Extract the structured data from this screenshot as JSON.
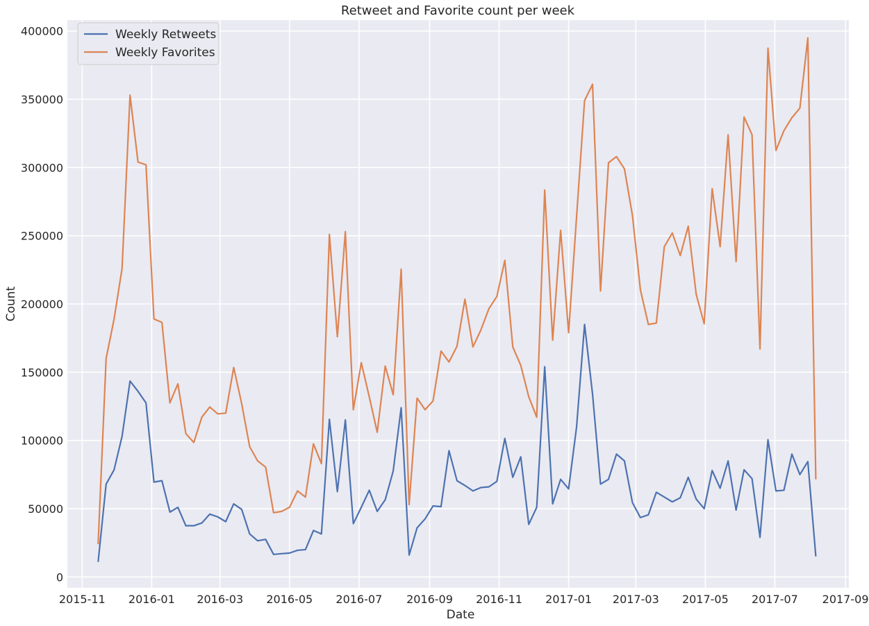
{
  "chart_data": {
    "type": "line",
    "title": "Retweet and Favorite count per week",
    "xlabel": "Date",
    "ylabel": "Count",
    "xlim": [
      "2015-10-19",
      "2017-09-04"
    ],
    "ylim": [
      -8000,
      408000
    ],
    "x_ticks": [
      "2015-11",
      "2016-01",
      "2016-03",
      "2016-05",
      "2016-07",
      "2016-09",
      "2016-11",
      "2017-01",
      "2017-03",
      "2017-05",
      "2017-07",
      "2017-09"
    ],
    "y_ticks": [
      "0",
      "50000",
      "100000",
      "150000",
      "200000",
      "250000",
      "300000",
      "350000",
      "400000"
    ],
    "grid": true,
    "legend_position": "top-left",
    "background": "#eaeaf2",
    "x": [
      "2015-11-15",
      "2015-11-22",
      "2015-11-29",
      "2015-12-06",
      "2015-12-13",
      "2015-12-20",
      "2015-12-27",
      "2016-01-03",
      "2016-01-10",
      "2016-01-17",
      "2016-01-24",
      "2016-01-31",
      "2016-02-07",
      "2016-02-14",
      "2016-02-21",
      "2016-02-28",
      "2016-03-06",
      "2016-03-13",
      "2016-03-20",
      "2016-03-27",
      "2016-04-03",
      "2016-04-10",
      "2016-04-17",
      "2016-04-24",
      "2016-05-01",
      "2016-05-08",
      "2016-05-15",
      "2016-05-22",
      "2016-05-29",
      "2016-06-05",
      "2016-06-12",
      "2016-06-19",
      "2016-06-26",
      "2016-07-03",
      "2016-07-10",
      "2016-07-17",
      "2016-07-24",
      "2016-07-31",
      "2016-08-07",
      "2016-08-14",
      "2016-08-21",
      "2016-08-28",
      "2016-09-04",
      "2016-09-11",
      "2016-09-18",
      "2016-09-25",
      "2016-10-02",
      "2016-10-09",
      "2016-10-16",
      "2016-10-23",
      "2016-10-30",
      "2016-11-06",
      "2016-11-13",
      "2016-11-20",
      "2016-11-27",
      "2016-12-04",
      "2016-12-11",
      "2016-12-18",
      "2016-12-25",
      "2017-01-01",
      "2017-01-08",
      "2017-01-15",
      "2017-01-22",
      "2017-01-29",
      "2017-02-05",
      "2017-02-12",
      "2017-02-19",
      "2017-02-26",
      "2017-03-05",
      "2017-03-12",
      "2017-03-19",
      "2017-03-26",
      "2017-04-02",
      "2017-04-09",
      "2017-04-16",
      "2017-04-23",
      "2017-04-30",
      "2017-05-07",
      "2017-05-14",
      "2017-05-21",
      "2017-05-28",
      "2017-06-04",
      "2017-06-11",
      "2017-06-18",
      "2017-06-25",
      "2017-07-02",
      "2017-07-09",
      "2017-07-16",
      "2017-07-23",
      "2017-07-30",
      "2017-08-06"
    ],
    "series": [
      {
        "name": "Weekly Retweets",
        "color": "#4c72b0",
        "values": [
          11000,
          68000,
          78500,
          103000,
          143500,
          136000,
          127500,
          69500,
          70500,
          47500,
          51000,
          37500,
          37500,
          39500,
          46000,
          44000,
          40500,
          53500,
          49500,
          31500,
          26500,
          27500,
          16500,
          17000,
          17500,
          19500,
          20000,
          34000,
          31500,
          115500,
          62500,
          115000,
          39000,
          51000,
          63500,
          48000,
          56500,
          77500,
          124000,
          16000,
          36000,
          42500,
          52000,
          51500,
          92500,
          70500,
          67000,
          63000,
          65500,
          66000,
          70000,
          101500,
          73000,
          88000,
          38500,
          51000,
          154000,
          53500,
          71500,
          64500,
          110000,
          185000,
          134000,
          68000,
          71500,
          90000,
          85000,
          54500,
          43500,
          45500,
          62000,
          58500,
          55000,
          58000,
          73000,
          57000,
          50000,
          78000,
          65000,
          85000,
          49000,
          78500,
          72000,
          29000,
          100500,
          63000,
          63500,
          90000,
          75000,
          84500,
          15000
        ]
      },
      {
        "name": "Weekly Favorites",
        "color": "#dd8452",
        "values": [
          24000,
          160000,
          189000,
          226000,
          353000,
          304000,
          302000,
          189000,
          186500,
          127500,
          141500,
          105000,
          98500,
          117000,
          124500,
          119500,
          120000,
          153500,
          127000,
          95500,
          85000,
          80500,
          47000,
          48000,
          51000,
          63000,
          58500,
          97500,
          83000,
          251000,
          176000,
          253000,
          122500,
          157000,
          132000,
          106000,
          154500,
          133500,
          225500,
          53000,
          131000,
          122500,
          129000,
          165500,
          157500,
          169000,
          203500,
          168500,
          181000,
          196500,
          205500,
          232000,
          168500,
          155000,
          132000,
          117000,
          283500,
          173500,
          254000,
          179000,
          264000,
          349000,
          361000,
          209500,
          303500,
          308000,
          299000,
          265000,
          210500,
          185000,
          186000,
          242000,
          252000,
          235500,
          257000,
          207000,
          185500,
          284500,
          242000,
          324000,
          231000,
          337000,
          324000,
          167000,
          387500,
          312500,
          327000,
          336500,
          343500,
          395000,
          71500
        ]
      }
    ]
  }
}
